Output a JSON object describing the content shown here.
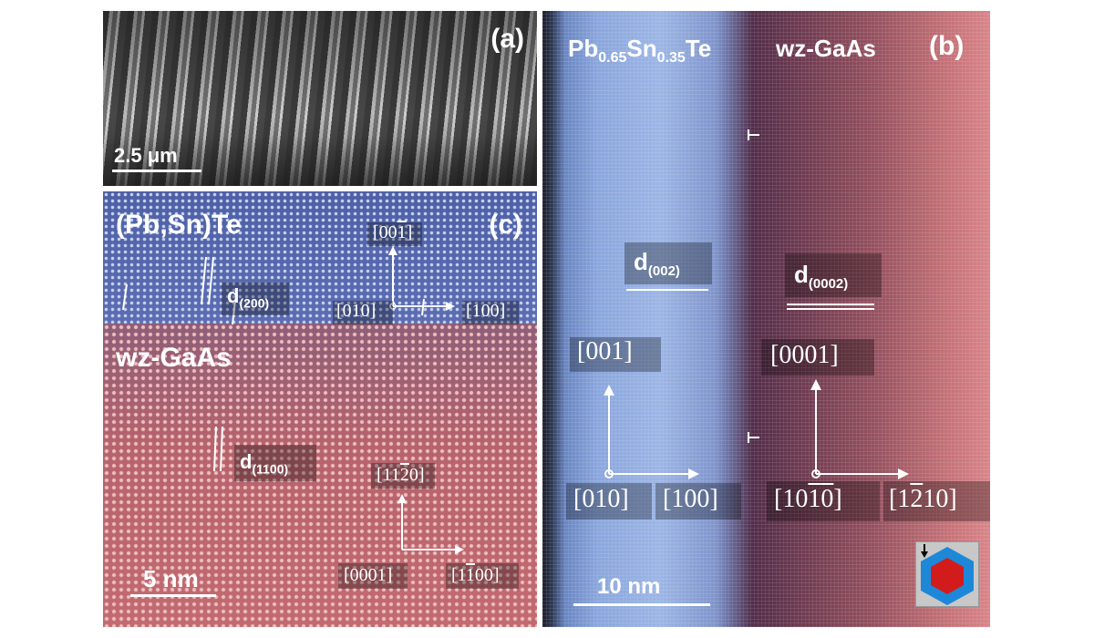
{
  "panel_a": {
    "label": "(a)",
    "scale_bar": "2.5 μm"
  },
  "panel_b": {
    "label": "(b)",
    "left_material": {
      "base": "Pb",
      "sub1": "0.65",
      "mid": "Sn",
      "sub2": "0.35",
      "tail": "Te"
    },
    "right_material": "wz-GaAs",
    "spacing_left": {
      "base": "d",
      "sub": "(002)"
    },
    "spacing_right": {
      "base": "d",
      "sub": "(0002)"
    },
    "left_axes": {
      "up": "[001]",
      "origin": "[010]",
      "right": "[100]"
    },
    "right_axes": {
      "up": "[0001]",
      "origin_pre": "[10",
      "origin_bar1": "1",
      "origin_bar2": "0",
      "origin_post": "]",
      "right_pre": "[1",
      "right_bar": "2",
      "right_post": "10]"
    },
    "scale_bar": "10 nm",
    "dislocation_marks": 2
  },
  "panel_c": {
    "label": "(c)",
    "top_material": "(Pb,Sn)Te",
    "bottom_material": "wz-GaAs",
    "spacing_top": {
      "base": "d",
      "sub": "(200)"
    },
    "spacing_bottom": {
      "base": "d",
      "sub": "(1100)"
    },
    "top_axes": {
      "up_pre": "[00",
      "up_bar": "1",
      "up_post": "]",
      "origin": "[010]",
      "right": "[100]"
    },
    "bottom_axes": {
      "up_pre": "[11",
      "up_bar": "2",
      "up_post": "0]",
      "origin": "[0001]",
      "right_pre": "[1",
      "right_bar": "1",
      "right_post": "00]"
    },
    "scale_bar": "5 nm"
  },
  "colors": {
    "pbsnte": "#7f9ad3",
    "gaas": "#c76e74",
    "hex_outer": "#1e88d8",
    "hex_inner": "#d21c1c"
  }
}
